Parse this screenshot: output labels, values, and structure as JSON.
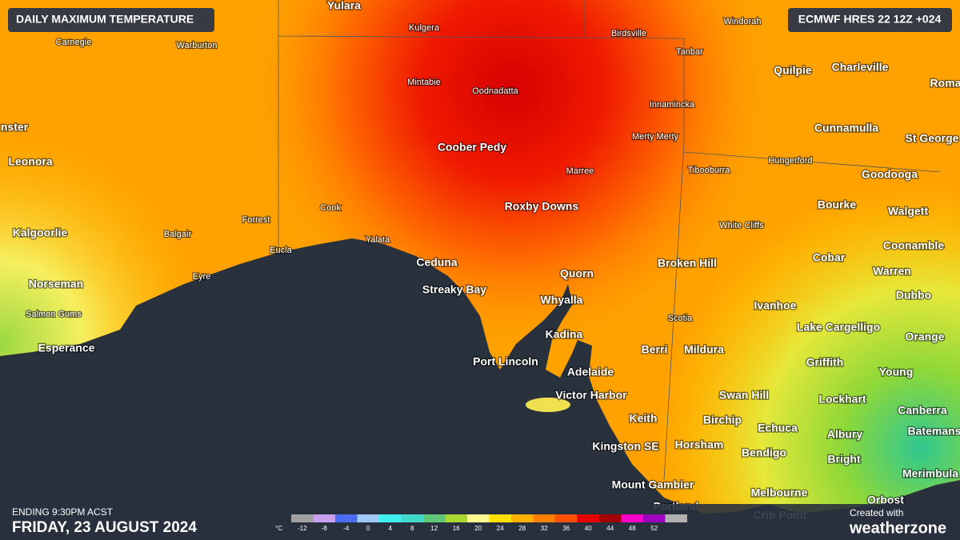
{
  "header": {
    "title": "DAILY MAXIMUM TEMPERATURE",
    "model": "ECMWF HRES 22 12Z +024"
  },
  "places": [
    "Yulara",
    "Kulgera",
    "Birdsville",
    "Windorah",
    "Carnegie",
    "Warburton",
    "Tanbar",
    "Quilpie",
    "Charleville",
    "Roma",
    "Mintabie",
    "Oodnadatta",
    "Innamincka",
    "nster",
    "Coober Pedy",
    "Merty Merty",
    "Cunnamulla",
    "St George",
    "Leonora",
    "Marree",
    "Tibooburra",
    "Hungerford",
    "Goodooga",
    "Roxby Downs",
    "Bourke",
    "Walgett",
    "Cook",
    "Forrest",
    "White Cliffs",
    "Kalgoorlie",
    "Balgair",
    "Yalata",
    "Eucla",
    "Cobar",
    "Coonamble",
    "Ceduna",
    "Broken Hill",
    "Quorn",
    "Warren",
    "Eyre",
    "Norseman",
    "Streaky Bay",
    "Dubbo",
    "Whyalla",
    "Ivanhoe",
    "Salmon Gums",
    "Scotia",
    "Lake Cargelligo",
    "Kadina",
    "Orange",
    "Esperance",
    "Berri",
    "Mildura",
    "Port Lincoln",
    "Griffith",
    "Adelaide",
    "Young",
    "Victor Harbor",
    "Swan Hill",
    "Lockhart",
    "Canberra",
    "Keith",
    "Birchip",
    "Echuca",
    "Batemans",
    "Albury",
    "Kingston SE",
    "Horsham",
    "Bendigo",
    "Bright",
    "Merimbula",
    "Mount Gambier",
    "Melbourne",
    "Orbost",
    "Portland",
    "Crib Point"
  ],
  "legend": {
    "unit": "°C",
    "values": [
      -12,
      -8,
      -4,
      0,
      4,
      8,
      12,
      16,
      20,
      24,
      28,
      32,
      36,
      40,
      44,
      48,
      52
    ]
  },
  "footer": {
    "ending": "ENDING 9:30PM ACST",
    "date": "FRIDAY, 23 AUGUST 2024",
    "credit": "Created with",
    "brand": "weatherzone"
  }
}
